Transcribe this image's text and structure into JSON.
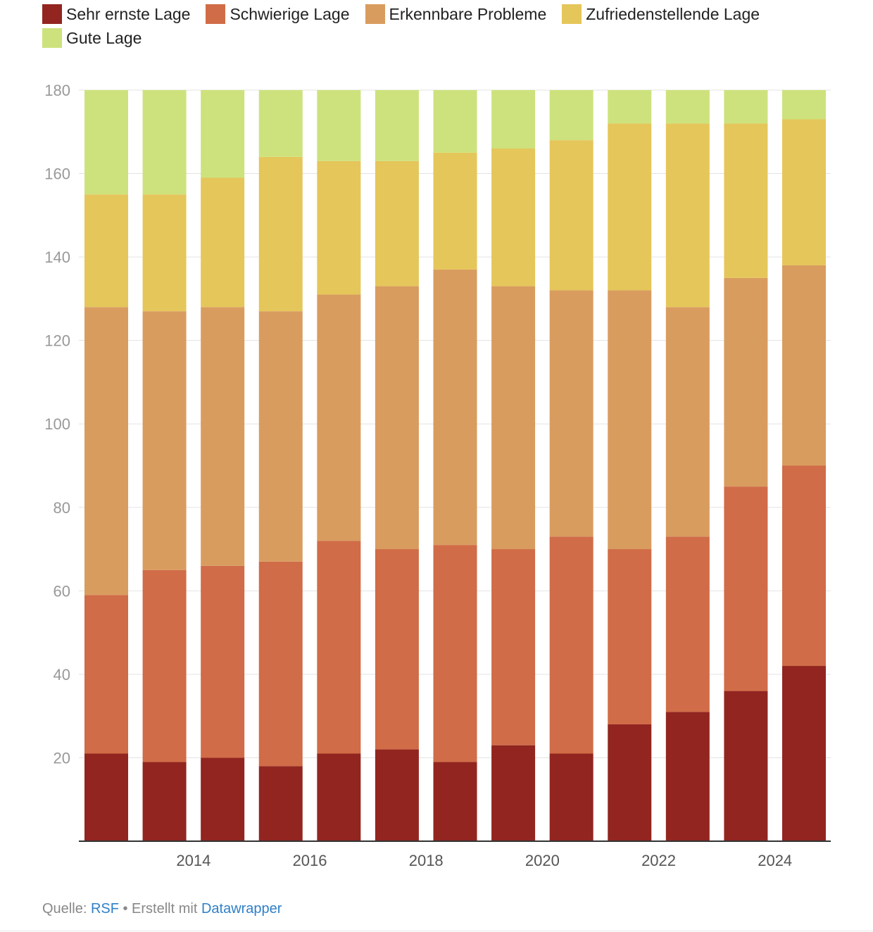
{
  "chart_data": {
    "type": "bar",
    "stacked": true,
    "title": "",
    "xlabel": "",
    "ylabel": "",
    "ylim": [
      0,
      180
    ],
    "yticks": [
      20,
      40,
      60,
      80,
      100,
      120,
      140,
      160,
      180
    ],
    "grid": true,
    "legend_position": "top-left",
    "categories": [
      2013,
      2014,
      2015,
      2016,
      2017,
      2018,
      2019,
      2020,
      2021,
      2022,
      2023,
      2024,
      2025
    ],
    "xtick_labels": [
      "2014",
      "2016",
      "2018",
      "2020",
      "2022",
      "2024"
    ],
    "series": [
      {
        "name": "Sehr ernste Lage",
        "color": "#922520",
        "values": [
          21,
          19,
          20,
          18,
          21,
          22,
          19,
          23,
          21,
          28,
          31,
          36,
          42
        ]
      },
      {
        "name": "Schwierige Lage",
        "color": "#d06c47",
        "values": [
          38,
          46,
          46,
          49,
          51,
          48,
          52,
          47,
          52,
          42,
          42,
          49,
          48
        ]
      },
      {
        "name": "Erkennbare Probleme",
        "color": "#d99c5f",
        "values": [
          69,
          62,
          62,
          60,
          59,
          63,
          66,
          63,
          59,
          62,
          55,
          50,
          48
        ]
      },
      {
        "name": "Zufriedenstellende Lage",
        "color": "#e5c65a",
        "values": [
          27,
          28,
          31,
          37,
          32,
          30,
          28,
          33,
          36,
          40,
          44,
          37,
          35
        ]
      },
      {
        "name": "Gute Lage",
        "color": "#cde27d",
        "values": [
          25,
          25,
          21,
          16,
          17,
          17,
          15,
          14,
          12,
          8,
          8,
          8,
          7
        ]
      }
    ]
  },
  "footer": {
    "source_prefix": "Quelle: ",
    "source_link": "RSF",
    "separator": " • Erstellt mit ",
    "tool_link": "Datawrapper"
  }
}
